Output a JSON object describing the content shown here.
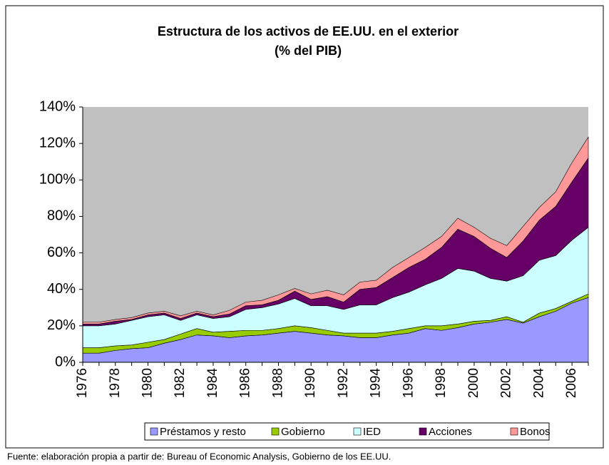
{
  "chart_data": {
    "type": "stacked_area",
    "title": "Estructura de los activos de EE.UU. en el exterior",
    "subtitle": "(% del PIB)",
    "source": "Fuente: elaboración propia a partir de: Bureau of Economic Analysis, Gobierno de los EE.UU.",
    "categories": [
      "1976",
      null,
      "1978",
      null,
      "1980",
      null,
      "1982",
      null,
      "1984",
      null,
      "1986",
      null,
      "1988",
      null,
      "1990",
      null,
      "1992",
      null,
      "1994",
      null,
      "1996",
      null,
      "1998",
      null,
      "2000",
      null,
      "2002",
      null,
      "2004",
      null,
      "2006",
      null
    ],
    "series": [
      {
        "name": "Préstamos y resto",
        "color": "#9999ff",
        "values": [
          5,
          5,
          6.5,
          7.5,
          8,
          10.5,
          12.5,
          15,
          14.5,
          13.5,
          14.5,
          15,
          16,
          17,
          16,
          15,
          14.5,
          13.5,
          13.5,
          15,
          16,
          18.5,
          17.5,
          19,
          21,
          22,
          23.5,
          21.5,
          25,
          28,
          32.5,
          35.5
        ]
      },
      {
        "name": "Gobierno",
        "color": "#99cc00",
        "values": [
          3,
          3,
          2.5,
          2,
          3,
          2,
          3,
          3.5,
          2,
          3.5,
          3,
          2.5,
          2.5,
          3,
          3,
          2.5,
          1.5,
          2.5,
          2.5,
          2,
          2.5,
          1.5,
          2.5,
          2,
          1.5,
          1,
          1.5,
          0.5,
          2,
          1.5,
          1,
          2
        ]
      },
      {
        "name": "IED",
        "color": "#ccffff",
        "values": [
          12,
          12,
          12,
          13.5,
          14,
          13.5,
          7.5,
          7.5,
          7.5,
          8,
          11.5,
          12.5,
          13.5,
          15,
          12,
          13.5,
          13,
          15.5,
          15.5,
          18.5,
          20,
          22.5,
          26,
          30.5,
          27.5,
          23,
          19.5,
          25.5,
          29,
          29,
          33.5,
          36.5
        ]
      },
      {
        "name": "Acciones",
        "color": "#660066",
        "values": [
          1,
          1,
          1.5,
          0.5,
          1,
          1,
          1,
          1,
          1,
          1.5,
          2,
          1.5,
          2,
          4,
          3.5,
          5,
          4,
          8.5,
          9.5,
          11,
          13.5,
          14,
          17,
          21.5,
          19,
          16.5,
          13,
          19,
          22,
          27,
          32,
          38
        ]
      },
      {
        "name": "Bonos",
        "color": "#ff9999",
        "values": [
          1,
          1,
          1,
          1,
          1,
          1,
          1.5,
          1,
          1,
          2,
          2,
          2.5,
          3,
          1.5,
          3,
          3.5,
          4,
          4,
          4,
          5.5,
          5.5,
          6.5,
          6,
          6,
          5,
          5.5,
          6.5,
          8,
          7,
          8,
          10.5,
          11.5
        ]
      }
    ],
    "ylim": [
      0,
      140
    ],
    "yticks": [
      {
        "value": 0,
        "label": "0%"
      },
      {
        "value": 20,
        "label": "20%"
      },
      {
        "value": 40,
        "label": "40%"
      },
      {
        "value": 60,
        "label": "60%"
      },
      {
        "value": 80,
        "label": "80%"
      },
      {
        "value": 100,
        "label": "100%"
      },
      {
        "value": 120,
        "label": "120%"
      },
      {
        "value": 140,
        "label": "140%"
      }
    ],
    "plot_background": "#c0c0c0",
    "legend": "bottom"
  }
}
